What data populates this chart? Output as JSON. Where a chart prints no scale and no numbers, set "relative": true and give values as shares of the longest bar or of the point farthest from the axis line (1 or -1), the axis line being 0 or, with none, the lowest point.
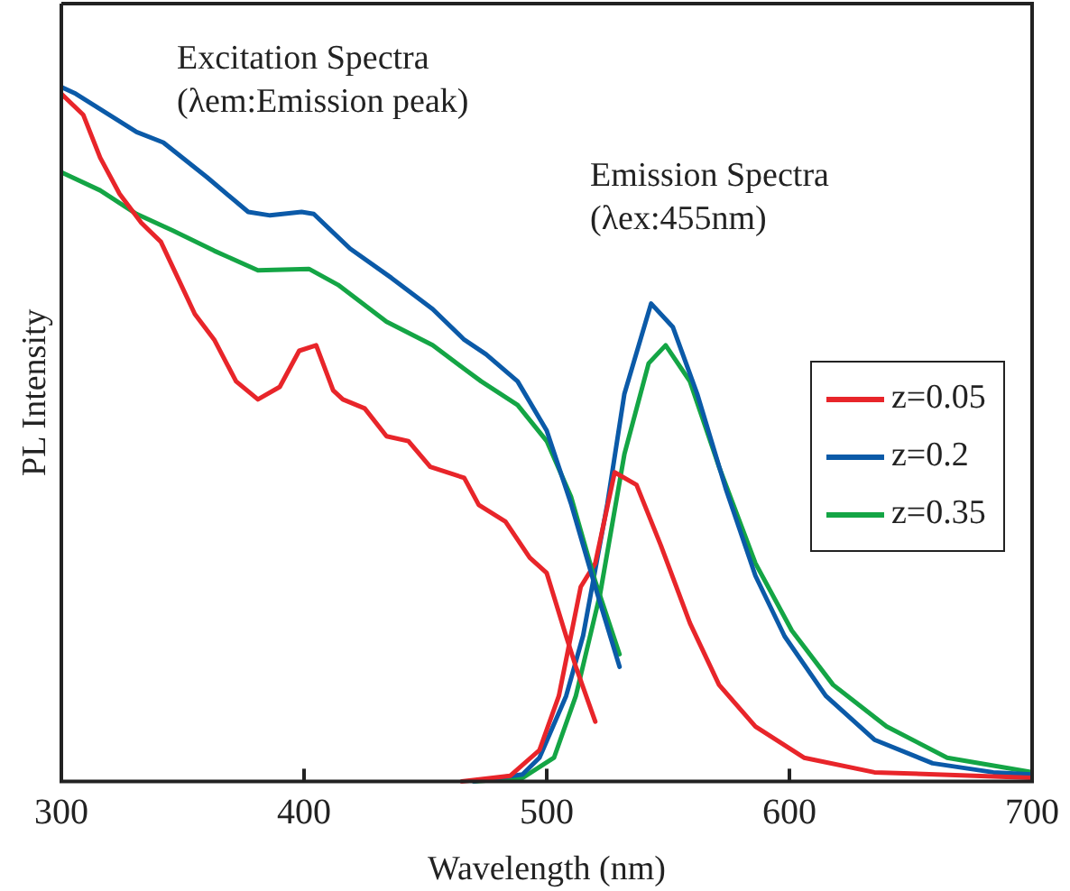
{
  "chart_data": {
    "type": "line",
    "relative": true,
    "xlabel": "Wavelength (nm)",
    "ylabel": "PL Intensity",
    "xlim": [
      300,
      700
    ],
    "xticks": [
      300,
      400,
      500,
      600,
      700
    ],
    "legend": "right",
    "grid": false,
    "marker": "none",
    "line_style": "solid",
    "annotations": [
      "Excitation Spectra\n(λem:Emission peak)",
      "Emission Spectra\n(λex:455nm)"
    ],
    "series": [
      {
        "color": "#e8252a",
        "x": [
          300,
          309,
          316,
          324,
          333,
          341,
          348,
          355,
          363,
          372,
          381,
          390,
          398,
          405,
          412,
          416,
          425,
          434,
          443,
          452,
          466,
          472,
          483,
          493,
          500,
          508,
          512,
          520
        ],
        "values": [
          0.99,
          0.96,
          0.898,
          0.846,
          0.804,
          0.777,
          0.725,
          0.673,
          0.636,
          0.576,
          0.55,
          0.568,
          0.62,
          0.628,
          0.563,
          0.55,
          0.537,
          0.497,
          0.49,
          0.453,
          0.437,
          0.398,
          0.374,
          0.322,
          0.3,
          0.209,
          0.165,
          0.086
        ]
      },
      {
        "color": "#0b5aa8",
        "x": [
          300,
          306,
          331,
          342,
          360,
          377,
          386,
          399,
          404,
          419,
          436,
          453,
          466,
          475,
          488,
          500,
          510,
          520,
          530
        ],
        "values": [
          1,
          0.99,
          0.935,
          0.92,
          0.87,
          0.82,
          0.815,
          0.82,
          0.817,
          0.767,
          0.725,
          0.68,
          0.636,
          0.615,
          0.576,
          0.505,
          0.4,
          0.28,
          0.165
        ]
      },
      {
        "color": "#14a545",
        "x": [
          300,
          316,
          331,
          346,
          363,
          381,
          402,
          414,
          434,
          453,
          466,
          473,
          488,
          500,
          510,
          520,
          530
        ],
        "values": [
          0.877,
          0.851,
          0.817,
          0.793,
          0.764,
          0.736,
          0.738,
          0.715,
          0.662,
          0.628,
          0.594,
          0.576,
          0.542,
          0.49,
          0.41,
          0.288,
          0.183
        ]
      },
      {
        "name": "z=0.05",
        "color": "#e8252a",
        "x": [
          465,
          485,
          497,
          505,
          514,
          520,
          528,
          537,
          547,
          559,
          571,
          586,
          606,
          635,
          700
        ],
        "values": [
          0,
          0.008,
          0.045,
          0.123,
          0.28,
          0.314,
          0.445,
          0.427,
          0.34,
          0.228,
          0.139,
          0.079,
          0.034,
          0.013,
          0.005
        ]
      },
      {
        "name": "z=0.2",
        "color": "#0b5aa8",
        "x": [
          470,
          490,
          497,
          508,
          515,
          525,
          532,
          543,
          552,
          562,
          574,
          586,
          598,
          615,
          635,
          659,
          684,
          700
        ],
        "values": [
          0,
          0.01,
          0.034,
          0.123,
          0.21,
          0.4,
          0.558,
          0.688,
          0.654,
          0.558,
          0.419,
          0.296,
          0.209,
          0.123,
          0.06,
          0.026,
          0.013,
          0.01
        ]
      },
      {
        "name": "z=0.35",
        "color": "#14a545",
        "x": [
          470,
          490,
          503,
          512,
          522,
          532,
          542,
          549,
          559,
          571,
          586,
          601,
          618,
          640,
          665,
          700
        ],
        "values": [
          0,
          0.005,
          0.034,
          0.123,
          0.27,
          0.471,
          0.602,
          0.628,
          0.576,
          0.453,
          0.314,
          0.217,
          0.139,
          0.079,
          0.034,
          0.013
        ]
      }
    ]
  }
}
